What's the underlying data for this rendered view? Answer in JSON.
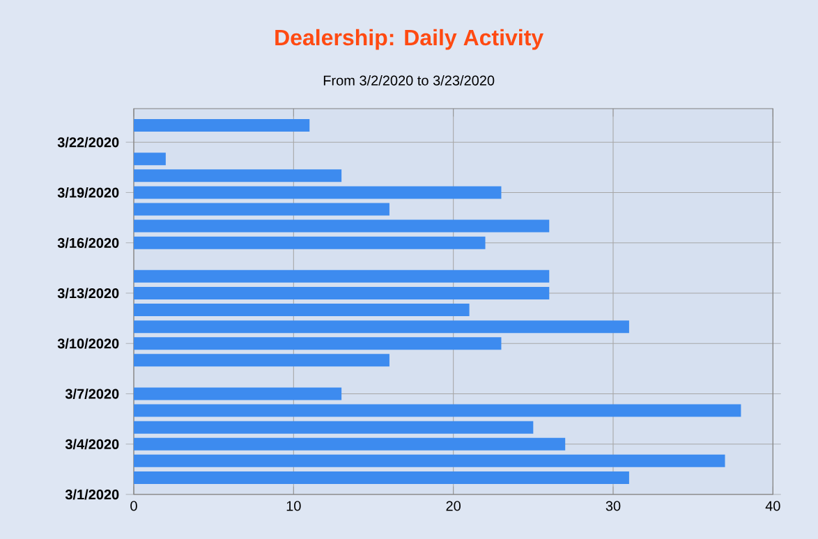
{
  "chart_data": {
    "type": "bar",
    "orientation": "horizontal",
    "title": "Dealership: Daily Activity",
    "subtitle": "From 3/2/2020 to 3/23/2020",
    "x": [
      "2020-03-02",
      "2020-03-03",
      "2020-03-04",
      "2020-03-05",
      "2020-03-06",
      "2020-03-07",
      "2020-03-09",
      "2020-03-10",
      "2020-03-11",
      "2020-03-12",
      "2020-03-13",
      "2020-03-14",
      "2020-03-16",
      "2020-03-17",
      "2020-03-18",
      "2020-03-19",
      "2020-03-20",
      "2020-03-21",
      "2020-03-23"
    ],
    "values": [
      31,
      37,
      27,
      25,
      38,
      13,
      16,
      23,
      31,
      21,
      26,
      26,
      22,
      26,
      16,
      23,
      13,
      2,
      11
    ],
    "color": "#3d8bef",
    "xlim": [
      0,
      40
    ],
    "xticks": [
      0,
      10,
      20,
      30,
      40
    ],
    "ylim": [
      "2020-03-01",
      "2020-03-24"
    ],
    "yticks": [
      {
        "value": "2020-03-01",
        "label": "3/1/2020"
      },
      {
        "value": "2020-03-04",
        "label": "3/4/2020"
      },
      {
        "value": "2020-03-07",
        "label": "3/7/2020"
      },
      {
        "value": "2020-03-10",
        "label": "3/10/2020"
      },
      {
        "value": "2020-03-13",
        "label": "3/13/2020"
      },
      {
        "value": "2020-03-16",
        "label": "3/16/2020"
      },
      {
        "value": "2020-03-19",
        "label": "3/19/2020"
      },
      {
        "value": "2020-03-22",
        "label": "3/22/2020"
      }
    ],
    "grid": true
  }
}
